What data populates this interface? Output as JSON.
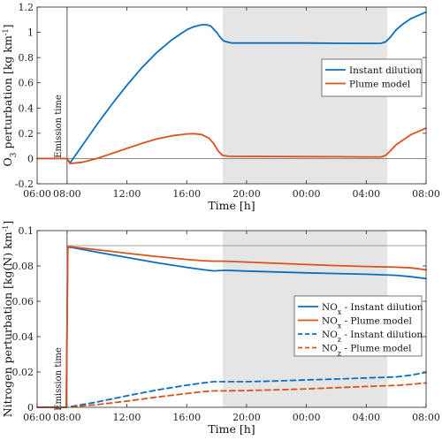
{
  "chart_data": [
    {
      "type": "line",
      "xlabel": "Time [h]",
      "ylabel": "O3 perturbation [kg km-1]",
      "ylabel_main": "O",
      "ylabel_sub": "3",
      "ylabel_rest": " perturbation [kg km",
      "ylabel_sup": "-1",
      "ylabel_end": "]",
      "x_hours_range": [
        6,
        32
      ],
      "ylim": [
        -0.2,
        1.2
      ],
      "x_tick_hours": [
        6,
        8,
        12,
        16,
        20,
        24,
        28,
        32
      ],
      "x_tick_labels": [
        "06:00",
        "08:00",
        "12:00",
        "16:00",
        "20:00",
        "00:00",
        "04:00",
        "08:00"
      ],
      "y_ticks": [
        -0.2,
        0,
        0.2,
        0.4,
        0.6,
        0.8,
        1,
        1.2
      ],
      "y_tick_labels": [
        "-0.2",
        "0",
        "0.2",
        "0.4",
        "0.6",
        "0.8",
        "1",
        "1.2"
      ],
      "night_shading": [
        18.4,
        29.4
      ],
      "emission_time": 8,
      "emission_label": "Emission time",
      "zero_line": 0,
      "legend_position": "right",
      "series": [
        {
          "name": "Instant dilution",
          "color": "#0a6ebd",
          "dash": "solid",
          "x": [
            6,
            8,
            8.2,
            9,
            10,
            11,
            12,
            13,
            14,
            15,
            15.5,
            16,
            16.5,
            17,
            17.3,
            17.6,
            18,
            18.3,
            18.5,
            19,
            20,
            22,
            24,
            26,
            28,
            29,
            29.3,
            29.6,
            30,
            30.5,
            31,
            31.5,
            32
          ],
          "values": [
            0,
            0,
            -0.035,
            0.1,
            0.27,
            0.43,
            0.58,
            0.72,
            0.84,
            0.94,
            0.98,
            1.02,
            1.045,
            1.06,
            1.06,
            1.05,
            1.0,
            0.95,
            0.93,
            0.915,
            0.915,
            0.915,
            0.915,
            0.913,
            0.912,
            0.913,
            0.925,
            0.96,
            1.02,
            1.07,
            1.11,
            1.135,
            1.16
          ]
        },
        {
          "name": "Plume model",
          "color": "#d8531a",
          "dash": "solid",
          "x": [
            6,
            8,
            8.2,
            9,
            10,
            11,
            12,
            13,
            14,
            15,
            16,
            16.5,
            17,
            17.5,
            17.8,
            18.1,
            18.4,
            18.8,
            20,
            22,
            24,
            26,
            28,
            29,
            29.3,
            29.6,
            30,
            30.5,
            31,
            31.5,
            32
          ],
          "values": [
            0,
            0,
            -0.04,
            -0.03,
            0.0,
            0.04,
            0.08,
            0.12,
            0.155,
            0.18,
            0.195,
            0.197,
            0.19,
            0.16,
            0.12,
            0.06,
            0.025,
            0.018,
            0.017,
            0.016,
            0.015,
            0.014,
            0.013,
            0.013,
            0.025,
            0.06,
            0.11,
            0.15,
            0.19,
            0.215,
            0.24
          ]
        }
      ]
    },
    {
      "type": "line",
      "xlabel": "Time [h]",
      "ylabel": "Nitrogen perturbation [kg(N) km-1]",
      "ylabel_rest": "Nitrogen perturbation [kg(N) km",
      "ylabel_sup": "-1",
      "ylabel_end": "]",
      "x_hours_range": [
        6,
        32
      ],
      "ylim": [
        0,
        0.1
      ],
      "x_tick_hours": [
        6,
        8,
        12,
        16,
        20,
        24,
        28,
        32
      ],
      "x_tick_labels": [
        "06:00",
        "08:00",
        "12:00",
        "16:00",
        "20:00",
        "00:00",
        "04:00",
        "08:00"
      ],
      "y_ticks": [
        0,
        0.02,
        0.04,
        0.06,
        0.08,
        0.1
      ],
      "y_tick_labels": [
        "0",
        "0.02",
        "0.04",
        "0.06",
        "0.08",
        "0.1"
      ],
      "night_shading": [
        18.4,
        29.4
      ],
      "emission_time": 8,
      "emission_label": "Emission time",
      "reference_line": 0.0915,
      "legend_position": "right",
      "series": [
        {
          "name": "NOx - Instant dilution",
          "label_main": "NO",
          "label_sub": "x",
          "label_rest": " - Instant dilution",
          "color": "#0a6ebd",
          "dash": "solid",
          "x": [
            6,
            7.95,
            8.05,
            8.3,
            10,
            12,
            14,
            16,
            17,
            17.8,
            18.5,
            19,
            20,
            22,
            24,
            26,
            28,
            30,
            31,
            32
          ],
          "values": [
            0,
            0,
            0.0905,
            0.0905,
            0.0878,
            0.0848,
            0.0818,
            0.0792,
            0.078,
            0.0772,
            0.0775,
            0.0774,
            0.0771,
            0.0766,
            0.0761,
            0.0757,
            0.0753,
            0.0747,
            0.0739,
            0.0728
          ]
        },
        {
          "name": "NOx - Plume model",
          "label_main": "NO",
          "label_sub": "x",
          "label_rest": " - Plume model",
          "color": "#d8531a",
          "dash": "solid",
          "x": [
            6,
            7.95,
            8.05,
            8.3,
            10,
            12,
            14,
            16,
            17,
            17.8,
            18.5,
            20,
            22,
            24,
            26,
            28,
            30,
            31,
            32
          ],
          "values": [
            0,
            0,
            0.091,
            0.0908,
            0.0892,
            0.0872,
            0.0853,
            0.0837,
            0.083,
            0.0827,
            0.0827,
            0.0822,
            0.0815,
            0.0808,
            0.0802,
            0.0797,
            0.0793,
            0.0789,
            0.0778
          ]
        },
        {
          "name": "NOz - Instant dilution",
          "label_main": "NO",
          "label_sub": "z",
          "label_rest": " - Instant dilution",
          "color": "#0a6ebd",
          "dash": "dashed",
          "x": [
            8.3,
            10,
            12,
            14,
            16,
            17,
            17.8,
            18.5,
            20,
            22,
            24,
            26,
            28,
            30,
            31,
            32
          ],
          "values": [
            0.0005,
            0.003,
            0.0065,
            0.0098,
            0.0125,
            0.0137,
            0.0145,
            0.0145,
            0.0145,
            0.0149,
            0.0155,
            0.016,
            0.0166,
            0.0172,
            0.0182,
            0.0198
          ]
        },
        {
          "name": "NOz - Plume model",
          "label_main": "NO",
          "label_sub": "z",
          "label_rest": " - Plume model",
          "color": "#d8531a",
          "dash": "dashed",
          "x": [
            8.3,
            10,
            12,
            14,
            16,
            17,
            17.8,
            18.5,
            20,
            22,
            24,
            26,
            28,
            30,
            31,
            32
          ],
          "values": [
            0.0003,
            0.0015,
            0.0035,
            0.0058,
            0.0078,
            0.0088,
            0.0093,
            0.0093,
            0.0095,
            0.0099,
            0.0104,
            0.0111,
            0.0118,
            0.0124,
            0.013,
            0.0138
          ]
        }
      ]
    }
  ]
}
